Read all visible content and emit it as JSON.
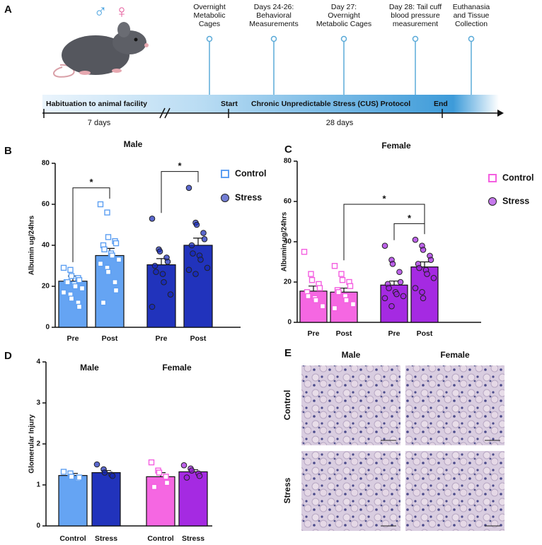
{
  "panels": [
    "A",
    "B",
    "C",
    "D",
    "E"
  ],
  "timeline": {
    "sex_symbols": [
      "♂",
      "♀"
    ],
    "events": [
      [
        "Overnight",
        "Metabolic",
        "Cages"
      ],
      [
        "Days 24-26:",
        "Behavioral",
        "Measurements"
      ],
      [
        "Day 27:",
        "Overnight",
        "Metabolic Cages"
      ],
      [
        "Day 28: Tail cuff",
        "blood pressure",
        "measurement"
      ],
      [
        "Euthanasia",
        "and Tissue",
        "Collection"
      ]
    ],
    "bar_labels": [
      "Habituation to animal facility",
      "Start",
      "Chronic Unpredictable Stress (CUS) Protocol",
      "End"
    ],
    "durations": [
      "7 days",
      "28 days"
    ]
  },
  "chart_data": [
    {
      "type": "bar",
      "title": "Male",
      "ylabel": "Albumin ug/24hrs",
      "categories": [
        "Pre",
        "Post"
      ],
      "legend": true,
      "ylim": [
        0,
        80
      ],
      "yticks": [
        0,
        20,
        40,
        60,
        80
      ],
      "series": [
        {
          "name": "Control",
          "colors": [
            "#5d9ff2",
            "#5d9ff2"
          ],
          "markers": [
            "square",
            "square"
          ],
          "values": [
            22.5,
            35
          ],
          "errors": [
            2.5,
            3.5
          ],
          "points": [
            [
              29,
              28,
              25,
              24,
              23,
              22,
              22,
              21,
              20,
              19,
              17,
              16,
              14,
              12,
              10
            ],
            [
              60,
              56,
              44,
              42,
              41,
              40,
              38,
              36,
              35,
              33,
              31,
              29,
              27,
              22,
              18,
              12
            ]
          ]
        },
        {
          "name": "Stress",
          "colors": [
            "#1528b8",
            "#1528b8"
          ],
          "markers": [
            "circle",
            "circle"
          ],
          "values": [
            30.5,
            40
          ],
          "errors": [
            3,
            3.5
          ],
          "points": [
            [
              53,
              38,
              37,
              34,
              32,
              30,
              27,
              26,
              22,
              16,
              10
            ],
            [
              68,
              51,
              50,
              46,
              43,
              40,
              36,
              35,
              33,
              29,
              28,
              26
            ]
          ]
        }
      ],
      "significance": [
        {
          "bars": [
            0,
            1
          ],
          "label": "*"
        },
        {
          "bars": [
            2,
            3
          ],
          "label": "*"
        }
      ]
    },
    {
      "type": "bar",
      "title": "Female",
      "ylabel": "Albumin ug/24hrs",
      "categories": [
        "Pre",
        "Post"
      ],
      "legend": true,
      "ylim": [
        0,
        80
      ],
      "yticks": [
        0,
        20,
        40,
        60,
        80
      ],
      "series": [
        {
          "name": "Control",
          "colors": [
            "#f45fe0",
            "#f45fe0"
          ],
          "markers": [
            "square",
            "square"
          ],
          "values": [
            15.5,
            15
          ],
          "errors": [
            2.5,
            2
          ],
          "points": [
            [
              35,
              24,
              21,
              19,
              17,
              15,
              13,
              12,
              11,
              8
            ],
            [
              28,
              24,
              21,
              20,
              18,
              16,
              15,
              13,
              11,
              9,
              7
            ]
          ]
        },
        {
          "name": "Stress",
          "colors": [
            "#a01fe0",
            "#a01fe0"
          ],
          "markers": [
            "circle",
            "circle"
          ],
          "values": [
            18.5,
            27.5
          ],
          "errors": [
            2,
            2.5
          ],
          "points": [
            [
              38,
              31,
              29,
              25,
              20,
              19,
              17,
              15,
              14,
              13,
              12,
              8
            ],
            [
              41,
              38,
              36,
              33,
              31,
              29,
              27,
              26,
              24,
              22,
              17,
              15,
              12
            ]
          ]
        }
      ],
      "significance": [
        {
          "bars": [
            2,
            3
          ],
          "label": "*"
        },
        {
          "bars": [
            1,
            3
          ],
          "label": "*"
        }
      ]
    },
    {
      "type": "bar",
      "ylabel": "Glomerular Injury",
      "categories": [
        "Control",
        "Stress"
      ],
      "legend": false,
      "ylim": [
        0,
        4
      ],
      "yticks": [
        0,
        1,
        2,
        3,
        4
      ],
      "series": [
        {
          "name": "Male",
          "colors": [
            "#5d9ff2",
            "#1528b8"
          ],
          "markers": [
            "square",
            "circle"
          ],
          "values": [
            1.23,
            1.3
          ],
          "errors": [
            0.05,
            0.05
          ],
          "points": [
            [
              1.32,
              1.28,
              1.2,
              1.15,
              1.18
            ],
            [
              1.5,
              1.38,
              1.3,
              1.25,
              1.22
            ]
          ]
        },
        {
          "name": "Female",
          "colors": [
            "#f45fe0",
            "#a01fe0"
          ],
          "markers": [
            "square",
            "circle"
          ],
          "values": [
            1.2,
            1.32
          ],
          "errors": [
            0.1,
            0.05
          ],
          "points": [
            [
              1.55,
              1.35,
              1.3,
              1.2,
              1.05,
              0.95
            ],
            [
              1.48,
              1.4,
              1.35,
              1.28,
              1.22,
              1.18
            ]
          ]
        }
      ],
      "significance": []
    }
  ],
  "histology": {
    "columns": [
      "Male",
      "Female"
    ],
    "rows": [
      "Control",
      "Stress"
    ]
  }
}
